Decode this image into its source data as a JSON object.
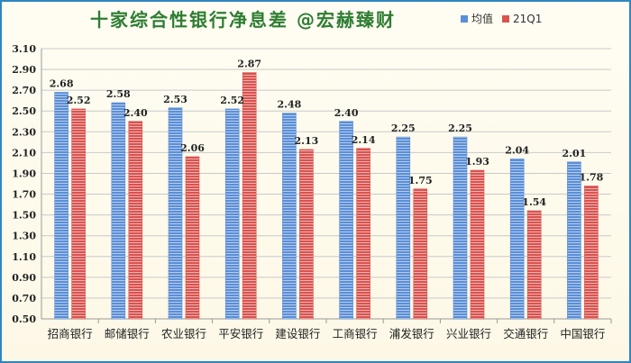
{
  "colors": {
    "series1": "#5b8ed6",
    "series2": "#d9534f",
    "title": "#2e7d32",
    "grid": "#c9c9c9",
    "border": "#2e86c1"
  },
  "chart_data": {
    "type": "bar",
    "title": "十家综合性银行净息差 @宏赫臻财",
    "categories": [
      "招商银行",
      "邮储银行",
      "农业银行",
      "平安银行",
      "建设银行",
      "工商银行",
      "浦发银行",
      "兴业银行",
      "交通银行",
      "中国银行"
    ],
    "series": [
      {
        "name": "均值",
        "values": [
          2.68,
          2.58,
          2.53,
          2.52,
          2.48,
          2.4,
          2.25,
          2.25,
          2.04,
          2.01
        ]
      },
      {
        "name": "21Q1",
        "values": [
          2.52,
          2.4,
          2.06,
          2.87,
          2.13,
          2.14,
          1.75,
          1.93,
          1.54,
          1.78
        ]
      }
    ],
    "ylim": [
      0.5,
      3.1
    ],
    "yticks": [
      "0.50",
      "0.70",
      "0.90",
      "1.10",
      "1.30",
      "1.50",
      "1.70",
      "1.90",
      "2.10",
      "2.30",
      "2.50",
      "2.70",
      "2.90",
      "3.10"
    ],
    "grid": true,
    "legend": "top-right",
    "xlabel": "",
    "ylabel": ""
  }
}
